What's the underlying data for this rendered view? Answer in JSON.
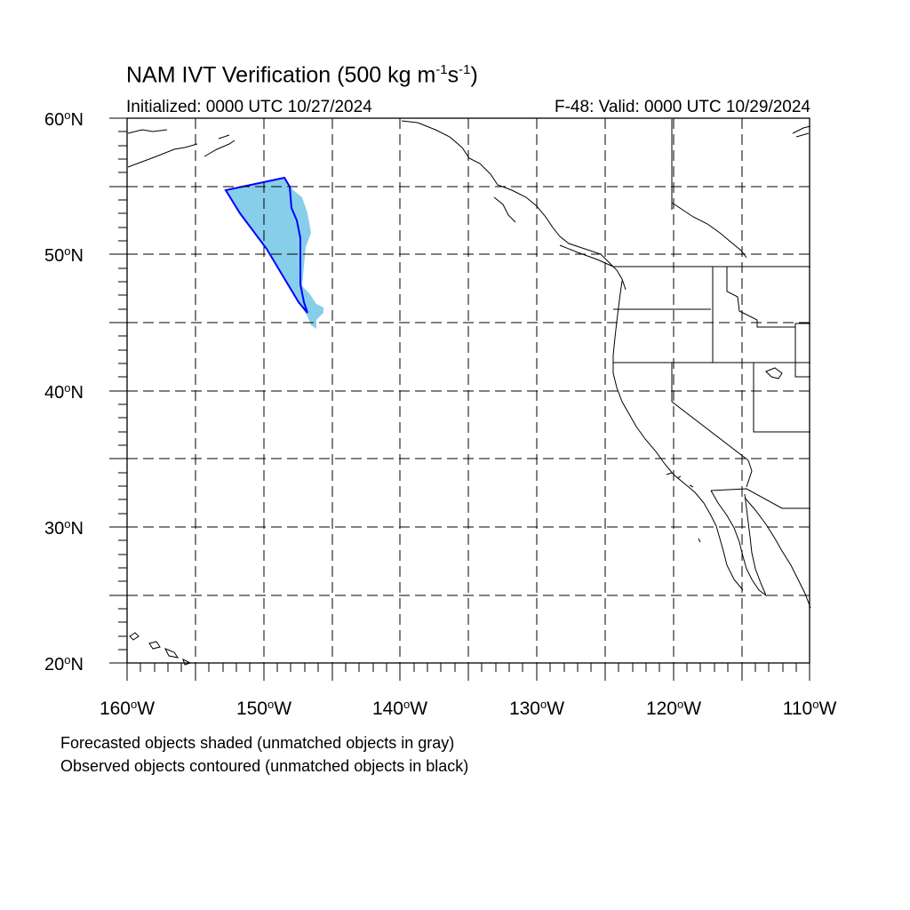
{
  "title": {
    "prefix": "NAM IVT Verification (500 kg m",
    "exp1": "-1",
    "middle": "s",
    "exp2": "-1",
    "suffix": ")"
  },
  "subtitle_left": "Initialized: 0000 UTC 10/27/2024",
  "subtitle_right": "F-48: Valid: 0000 UTC 10/29/2024",
  "lat_labels": [
    {
      "value": "60",
      "unit": "o",
      "hem": "N"
    },
    {
      "value": "50",
      "unit": "o",
      "hem": "N"
    },
    {
      "value": "40",
      "unit": "o",
      "hem": "N"
    },
    {
      "value": "30",
      "unit": "o",
      "hem": "N"
    },
    {
      "value": "20",
      "unit": "o",
      "hem": "N"
    }
  ],
  "lon_labels": [
    {
      "value": "160",
      "unit": "o",
      "hem": "W"
    },
    {
      "value": "150",
      "unit": "o",
      "hem": "W"
    },
    {
      "value": "140",
      "unit": "o",
      "hem": "W"
    },
    {
      "value": "130",
      "unit": "o",
      "hem": "W"
    },
    {
      "value": "120",
      "unit": "o",
      "hem": "W"
    },
    {
      "value": "110",
      "unit": "o",
      "hem": "W"
    }
  ],
  "legend_notes": [
    "Forecasted objects shaded (unmatched objects in gray)",
    "Observed objects contoured (unmatched objects in black)"
  ],
  "map": {
    "lon_range": [
      -160,
      -110
    ],
    "lat_range": [
      20,
      60
    ],
    "grid_spacing_deg": 5,
    "colors": {
      "forecast_fill": "#87ceeb",
      "observed_contour": "#0000ff",
      "coastline": "#000000",
      "grid": "#000000"
    }
  }
}
